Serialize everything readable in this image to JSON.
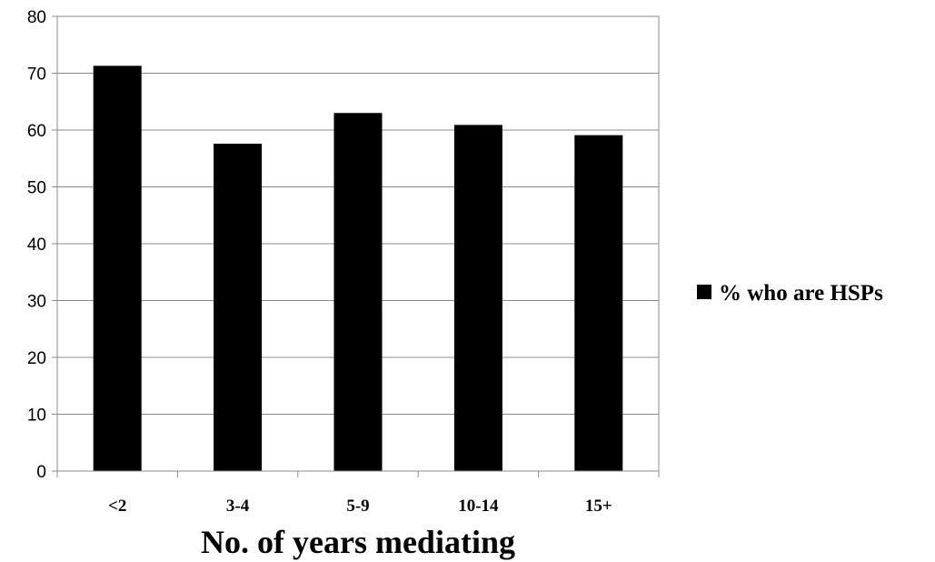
{
  "chart_data": {
    "type": "bar",
    "categories": [
      "<2",
      "3-4",
      "5-9",
      "10-14",
      "15+"
    ],
    "series": [
      {
        "name": "% who are HSPs",
        "values": [
          71.3,
          57.6,
          63.0,
          60.9,
          59.1
        ],
        "color": "#000000"
      }
    ],
    "title": "",
    "xlabel": "No. of years  mediating",
    "ylabel": "",
    "ylim": [
      0,
      80
    ],
    "yticks": [
      0,
      10,
      20,
      30,
      40,
      50,
      60,
      70,
      80
    ],
    "grid": true,
    "legend": "right"
  }
}
